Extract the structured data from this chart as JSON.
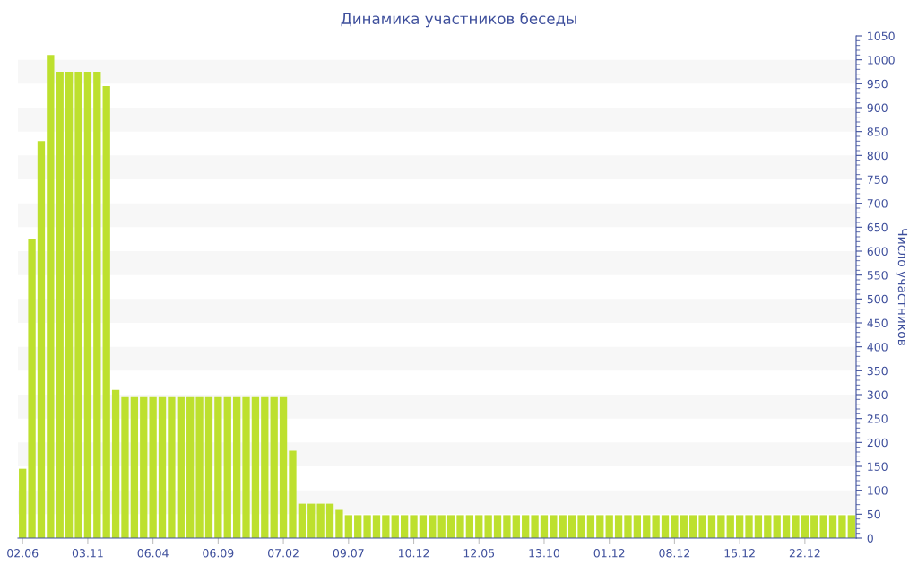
{
  "chart_data": {
    "type": "bar",
    "title": "Динамика участников беседы",
    "ylabel": "Число участников",
    "categories": [
      "02.06",
      null,
      null,
      null,
      null,
      null,
      null,
      "03.11",
      null,
      null,
      null,
      null,
      null,
      null,
      "06.04",
      null,
      null,
      null,
      null,
      null,
      null,
      "06.09",
      null,
      null,
      null,
      null,
      null,
      null,
      "07.02",
      null,
      null,
      null,
      null,
      null,
      null,
      "09.07",
      null,
      null,
      null,
      null,
      null,
      null,
      "10.12",
      null,
      null,
      null,
      null,
      null,
      null,
      "12.05",
      null,
      null,
      null,
      null,
      null,
      null,
      "13.10",
      null,
      null,
      null,
      null,
      null,
      null,
      "01.12",
      null,
      null,
      null,
      null,
      null,
      null,
      "08.12",
      null,
      null,
      null,
      null,
      null,
      null,
      "15.12",
      null,
      null,
      null,
      null,
      null,
      null,
      "22.12",
      null,
      null,
      null,
      null,
      null
    ],
    "values": [
      145,
      625,
      830,
      1010,
      975,
      975,
      975,
      975,
      975,
      945,
      310,
      295,
      295,
      295,
      295,
      295,
      295,
      295,
      295,
      295,
      295,
      295,
      295,
      295,
      295,
      295,
      295,
      295,
      295,
      183,
      72,
      72,
      72,
      72,
      59,
      48,
      48,
      48,
      48,
      48,
      48,
      48,
      48,
      48,
      48,
      48,
      48,
      48,
      48,
      48,
      48,
      48,
      48,
      48,
      48,
      48,
      48,
      48,
      48,
      48,
      48,
      48,
      48,
      48,
      48,
      48,
      48,
      48,
      48,
      48,
      48,
      48,
      48,
      48,
      48,
      48,
      48,
      48,
      48,
      48,
      48,
      48,
      48,
      48,
      48,
      48,
      48,
      48,
      48,
      48
    ],
    "color": "#bde02e",
    "ylim": [
      0,
      1050
    ],
    "yticks": [
      0,
      50,
      100,
      150,
      200,
      250,
      300,
      350,
      400,
      450,
      500,
      550,
      600,
      650,
      700,
      750,
      800,
      850,
      900,
      950,
      1000,
      1050
    ],
    "bands": [
      {
        "axis": "y",
        "from": 50,
        "to": 100,
        "color": "#f7f7f7"
      },
      {
        "axis": "y",
        "from": 150,
        "to": 200,
        "color": "#f7f7f7"
      },
      {
        "axis": "y",
        "from": 250,
        "to": 300,
        "color": "#f7f7f7"
      },
      {
        "axis": "y",
        "from": 350,
        "to": 400,
        "color": "#f7f7f7"
      },
      {
        "axis": "y",
        "from": 450,
        "to": 500,
        "color": "#f7f7f7"
      },
      {
        "axis": "y",
        "from": 550,
        "to": 600,
        "color": "#f7f7f7"
      },
      {
        "axis": "y",
        "from": 650,
        "to": 700,
        "color": "#f7f7f7"
      },
      {
        "axis": "y",
        "from": 750,
        "to": 800,
        "color": "#f7f7f7"
      },
      {
        "axis": "y",
        "from": 850,
        "to": 900,
        "color": "#f7f7f7"
      },
      {
        "axis": "y",
        "from": 950,
        "to": 1000,
        "color": "#f7f7f7"
      }
    ],
    "grid": false,
    "legend": false
  }
}
